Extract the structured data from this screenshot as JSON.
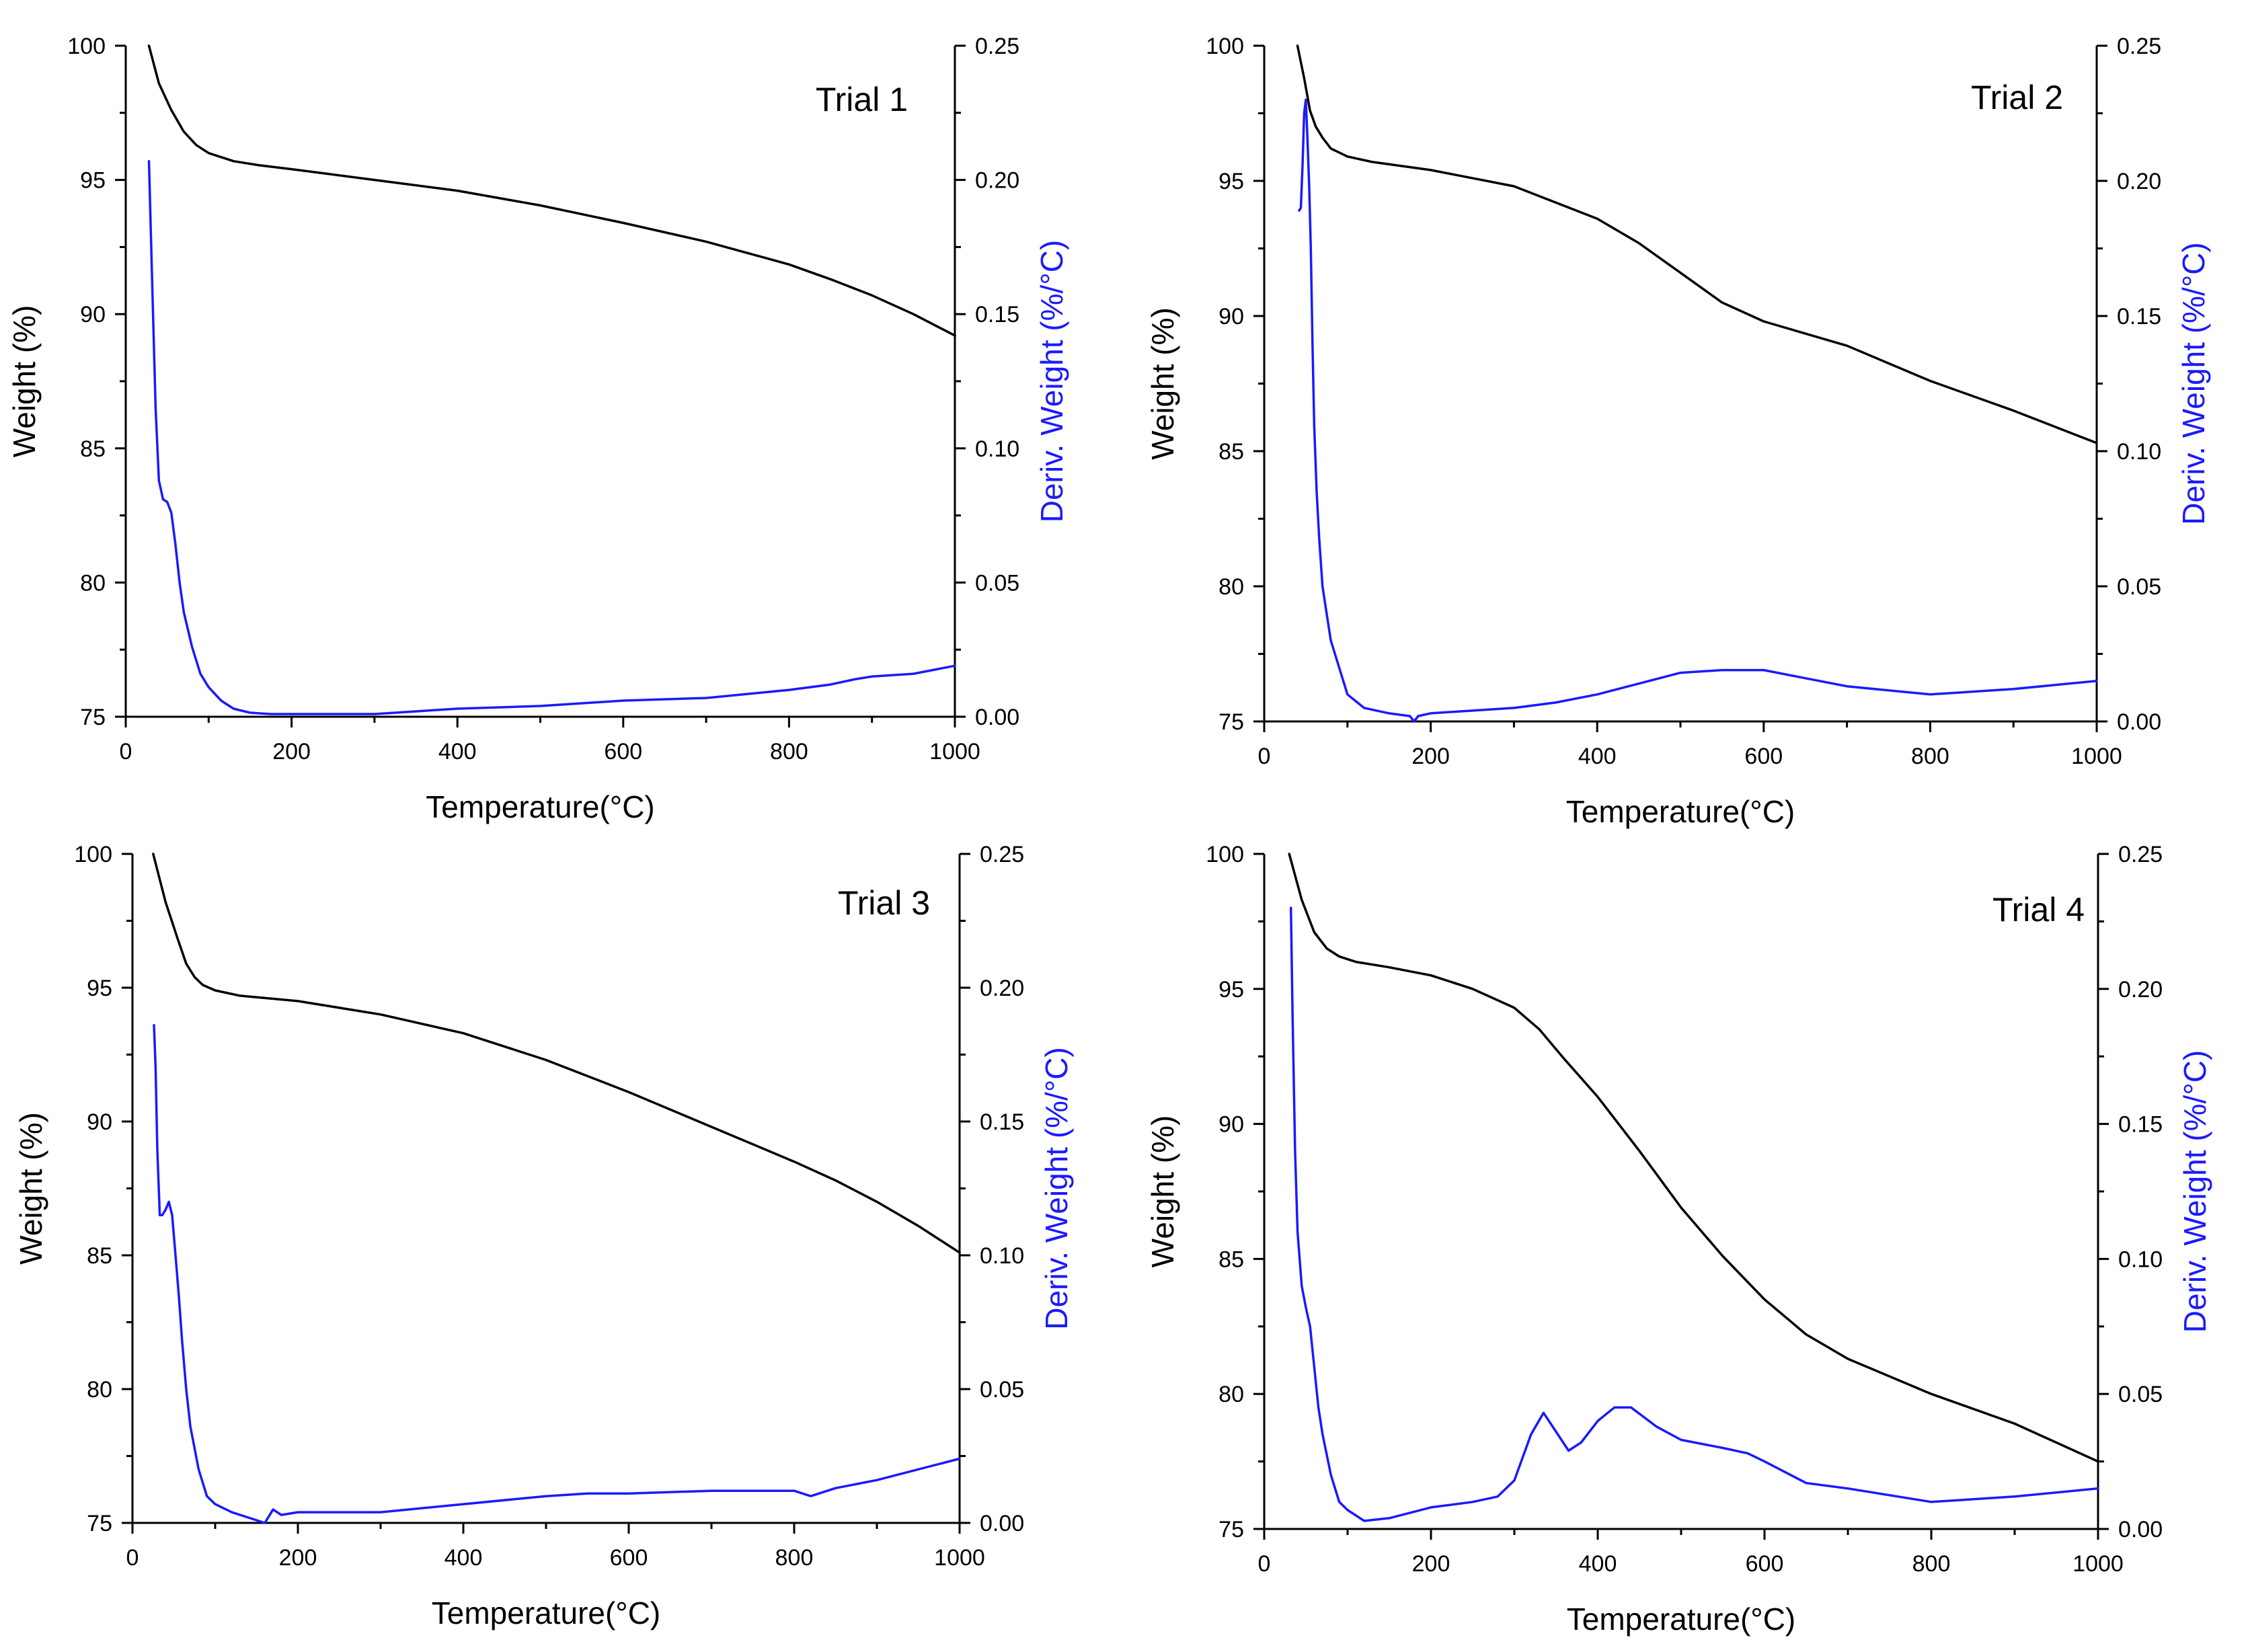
{
  "colors": {
    "weight_line": "#000000",
    "deriv_line": "#1a1aff",
    "axis": "#000000",
    "background": "#ffffff"
  },
  "chart_data": [
    {
      "type": "line",
      "title": "Trial 1",
      "xlabel": "Temperature(°C)",
      "ylabel": "Weight (%)",
      "y2label": "Deriv. Weight (%/°C)",
      "xlim": [
        0,
        1000
      ],
      "ylim": [
        75,
        100
      ],
      "y2lim": [
        0,
        0.25
      ],
      "xticks": [
        "0",
        "200",
        "400",
        "600",
        "800",
        "1000"
      ],
      "yticks": [
        "75",
        "80",
        "85",
        "90",
        "95",
        "100"
      ],
      "y2ticks": [
        "0.00",
        "0.05",
        "0.10",
        "0.15",
        "0.20",
        "0.25"
      ],
      "series": [
        {
          "name": "Weight",
          "axis": "left",
          "color": "#000000",
          "x": [
            28,
            40,
            55,
            70,
            85,
            100,
            130,
            160,
            200,
            300,
            400,
            500,
            600,
            700,
            800,
            850,
            900,
            950,
            1000
          ],
          "y": [
            100,
            98.6,
            97.6,
            96.8,
            96.3,
            96.0,
            95.7,
            95.55,
            95.4,
            95.0,
            94.6,
            94.05,
            93.4,
            92.7,
            91.85,
            91.3,
            90.7,
            90.0,
            89.2
          ]
        },
        {
          "name": "Deriv. Weight",
          "axis": "right",
          "color": "#1a1aff",
          "x": [
            28,
            32,
            36,
            40,
            45,
            50,
            55,
            60,
            65,
            70,
            80,
            90,
            100,
            115,
            130,
            150,
            175,
            200,
            300,
            400,
            500,
            600,
            700,
            800,
            850,
            880,
            900,
            950,
            1000
          ],
          "y": [
            0.207,
            0.16,
            0.115,
            0.088,
            0.081,
            0.08,
            0.076,
            0.064,
            0.05,
            0.039,
            0.026,
            0.016,
            0.011,
            0.006,
            0.003,
            0.0015,
            0.001,
            0.001,
            0.001,
            0.003,
            0.004,
            0.006,
            0.007,
            0.01,
            0.012,
            0.014,
            0.015,
            0.016,
            0.019
          ]
        }
      ]
    },
    {
      "type": "line",
      "title": "Trial 2",
      "xlabel": "Temperature(°C)",
      "ylabel": "Weight (%)",
      "y2label": "Deriv. Weight (%/°C)",
      "xlim": [
        0,
        1000
      ],
      "ylim": [
        75,
        100
      ],
      "y2lim": [
        0,
        0.25
      ],
      "xticks": [
        "0",
        "200",
        "400",
        "600",
        "800",
        "1000"
      ],
      "yticks": [
        "75",
        "80",
        "85",
        "90",
        "95",
        "100"
      ],
      "y2ticks": [
        "0.00",
        "0.05",
        "0.10",
        "0.15",
        "0.20",
        "0.25"
      ],
      "series": [
        {
          "name": "Weight",
          "axis": "left",
          "color": "#000000",
          "x": [
            40,
            48,
            55,
            62,
            70,
            80,
            100,
            130,
            200,
            300,
            400,
            450,
            500,
            550,
            600,
            700,
            800,
            900,
            1000
          ],
          "y": [
            100,
            98.8,
            97.6,
            97.0,
            96.6,
            96.2,
            95.9,
            95.7,
            95.4,
            94.8,
            93.6,
            92.7,
            91.6,
            90.5,
            89.8,
            88.9,
            87.6,
            86.5,
            85.3
          ]
        },
        {
          "name": "Deriv. Weight",
          "axis": "right",
          "color": "#1a1aff",
          "x": [
            42,
            44,
            46,
            48,
            50,
            52,
            54,
            56,
            58,
            60,
            63,
            66,
            70,
            75,
            80,
            90,
            100,
            120,
            150,
            175,
            180,
            185,
            200,
            300,
            350,
            400,
            450,
            500,
            550,
            600,
            650,
            700,
            800,
            900,
            1000
          ],
          "y": [
            0.189,
            0.19,
            0.205,
            0.225,
            0.23,
            0.215,
            0.198,
            0.175,
            0.14,
            0.11,
            0.085,
            0.068,
            0.05,
            0.04,
            0.03,
            0.02,
            0.01,
            0.005,
            0.003,
            0.002,
            0.0,
            0.002,
            0.003,
            0.005,
            0.007,
            0.01,
            0.014,
            0.018,
            0.019,
            0.019,
            0.016,
            0.013,
            0.01,
            0.012,
            0.015
          ]
        }
      ]
    },
    {
      "type": "line",
      "title": "Trial 3",
      "xlabel": "Temperature(°C)",
      "ylabel": "Weight (%)",
      "y2label": "Deriv. Weight (%/°C)",
      "xlim": [
        0,
        1000
      ],
      "ylim": [
        75,
        100
      ],
      "y2lim": [
        0,
        0.25
      ],
      "xticks": [
        "0",
        "200",
        "400",
        "600",
        "800",
        "1000"
      ],
      "yticks": [
        "75",
        "80",
        "85",
        "90",
        "95",
        "100"
      ],
      "y2ticks": [
        "0.00",
        "0.05",
        "0.10",
        "0.15",
        "0.20",
        "0.25"
      ],
      "series": [
        {
          "name": "Weight",
          "axis": "left",
          "color": "#000000",
          "x": [
            25,
            40,
            55,
            65,
            75,
            85,
            100,
            130,
            200,
            300,
            400,
            500,
            600,
            700,
            800,
            850,
            900,
            950,
            1000
          ],
          "y": [
            100,
            98.2,
            96.8,
            95.9,
            95.4,
            95.1,
            94.9,
            94.7,
            94.5,
            94.0,
            93.3,
            92.3,
            91.1,
            89.8,
            88.5,
            87.8,
            87.0,
            86.1,
            85.1
          ]
        },
        {
          "name": "Deriv. Weight",
          "axis": "right",
          "color": "#1a1aff",
          "x": [
            26,
            28,
            30,
            33,
            36,
            40,
            44,
            48,
            52,
            56,
            60,
            65,
            70,
            80,
            90,
            100,
            120,
            150,
            160,
            170,
            180,
            200,
            300,
            400,
            500,
            550,
            600,
            700,
            800,
            820,
            850,
            900,
            1000
          ],
          "y": [
            0.186,
            0.17,
            0.14,
            0.115,
            0.115,
            0.117,
            0.12,
            0.115,
            0.1,
            0.085,
            0.068,
            0.05,
            0.036,
            0.02,
            0.01,
            0.007,
            0.004,
            0.001,
            0.0,
            0.005,
            0.003,
            0.004,
            0.004,
            0.007,
            0.01,
            0.011,
            0.011,
            0.012,
            0.012,
            0.01,
            0.013,
            0.016,
            0.024
          ]
        }
      ]
    },
    {
      "type": "line",
      "title": "Trial 4",
      "xlabel": "Temperature(°C)",
      "ylabel": "Weight (%)",
      "y2label": "Deriv. Weight (%/°C)",
      "xlim": [
        0,
        1000
      ],
      "ylim": [
        75,
        100
      ],
      "y2lim": [
        0,
        0.25
      ],
      "xticks": [
        "0",
        "200",
        "400",
        "600",
        "800",
        "1000"
      ],
      "yticks": [
        "75",
        "80",
        "85",
        "90",
        "95",
        "100"
      ],
      "y2ticks": [
        "0.00",
        "0.05",
        "0.10",
        "0.15",
        "0.20",
        "0.25"
      ],
      "series": [
        {
          "name": "Weight",
          "axis": "left",
          "color": "#000000",
          "x": [
            30,
            45,
            60,
            75,
            90,
            110,
            150,
            200,
            250,
            300,
            330,
            360,
            400,
            450,
            500,
            550,
            600,
            650,
            700,
            800,
            900,
            1000
          ],
          "y": [
            100,
            98.3,
            97.1,
            96.5,
            96.2,
            96.0,
            95.8,
            95.5,
            95.0,
            94.3,
            93.5,
            92.4,
            91.0,
            89.0,
            86.9,
            85.1,
            83.5,
            82.2,
            81.3,
            80.0,
            78.9,
            77.5
          ]
        },
        {
          "name": "Deriv. Weight",
          "axis": "right",
          "color": "#1a1aff",
          "x": [
            32,
            34,
            37,
            40,
            45,
            50,
            55,
            60,
            65,
            70,
            80,
            90,
            100,
            120,
            150,
            200,
            250,
            280,
            300,
            320,
            335,
            350,
            365,
            380,
            400,
            420,
            440,
            470,
            500,
            550,
            580,
            600,
            650,
            700,
            800,
            900,
            1000
          ],
          "y": [
            0.23,
            0.19,
            0.14,
            0.11,
            0.09,
            0.082,
            0.075,
            0.06,
            0.045,
            0.035,
            0.02,
            0.01,
            0.007,
            0.003,
            0.004,
            0.008,
            0.01,
            0.012,
            0.018,
            0.035,
            0.043,
            0.036,
            0.029,
            0.032,
            0.04,
            0.045,
            0.045,
            0.038,
            0.033,
            0.03,
            0.028,
            0.025,
            0.017,
            0.015,
            0.01,
            0.012,
            0.015
          ]
        }
      ]
    }
  ]
}
